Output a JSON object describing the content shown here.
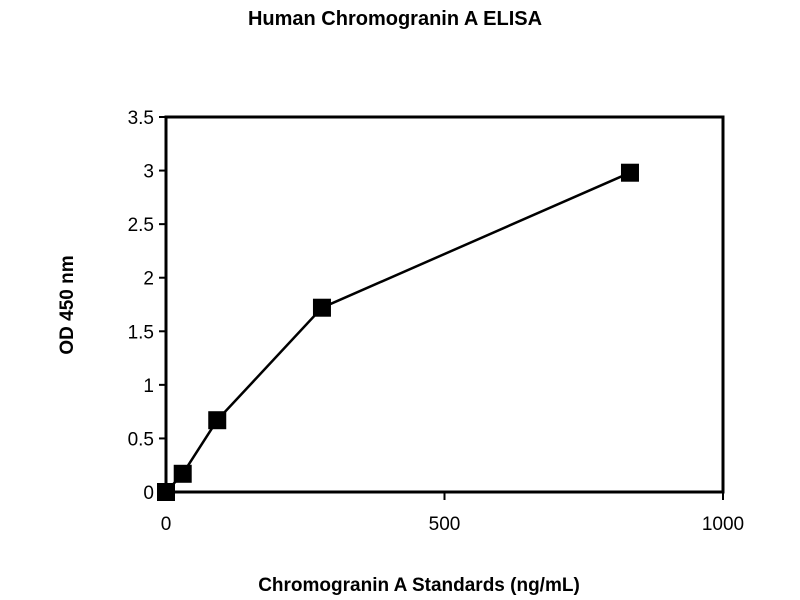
{
  "chart_data": {
    "type": "line",
    "title": "Human Chromogranin A ELISA",
    "xlabel": "Chromogranin A Standards (ng/mL)",
    "ylabel": "OD 450 nm",
    "xlim": [
      0,
      1000
    ],
    "ylim": [
      0,
      3.5
    ],
    "x_ticks": [
      0,
      500,
      1000
    ],
    "x_tick_labels": [
      "0",
      "500",
      "1000"
    ],
    "y_ticks": [
      0,
      0.5,
      1,
      1.5,
      2,
      2.5,
      3,
      3.5
    ],
    "y_tick_labels": [
      "0",
      "0.5",
      "1",
      "1.5",
      "2",
      "2.5",
      "3",
      "3.5"
    ],
    "grid": false,
    "legend": "none",
    "marker": "square",
    "line_color": "#000000",
    "marker_color": "#000000",
    "series": [
      {
        "x": [
          0,
          30,
          92,
          280,
          833
        ],
        "y": [
          0.0,
          0.17,
          0.67,
          1.72,
          2.98
        ]
      }
    ]
  }
}
